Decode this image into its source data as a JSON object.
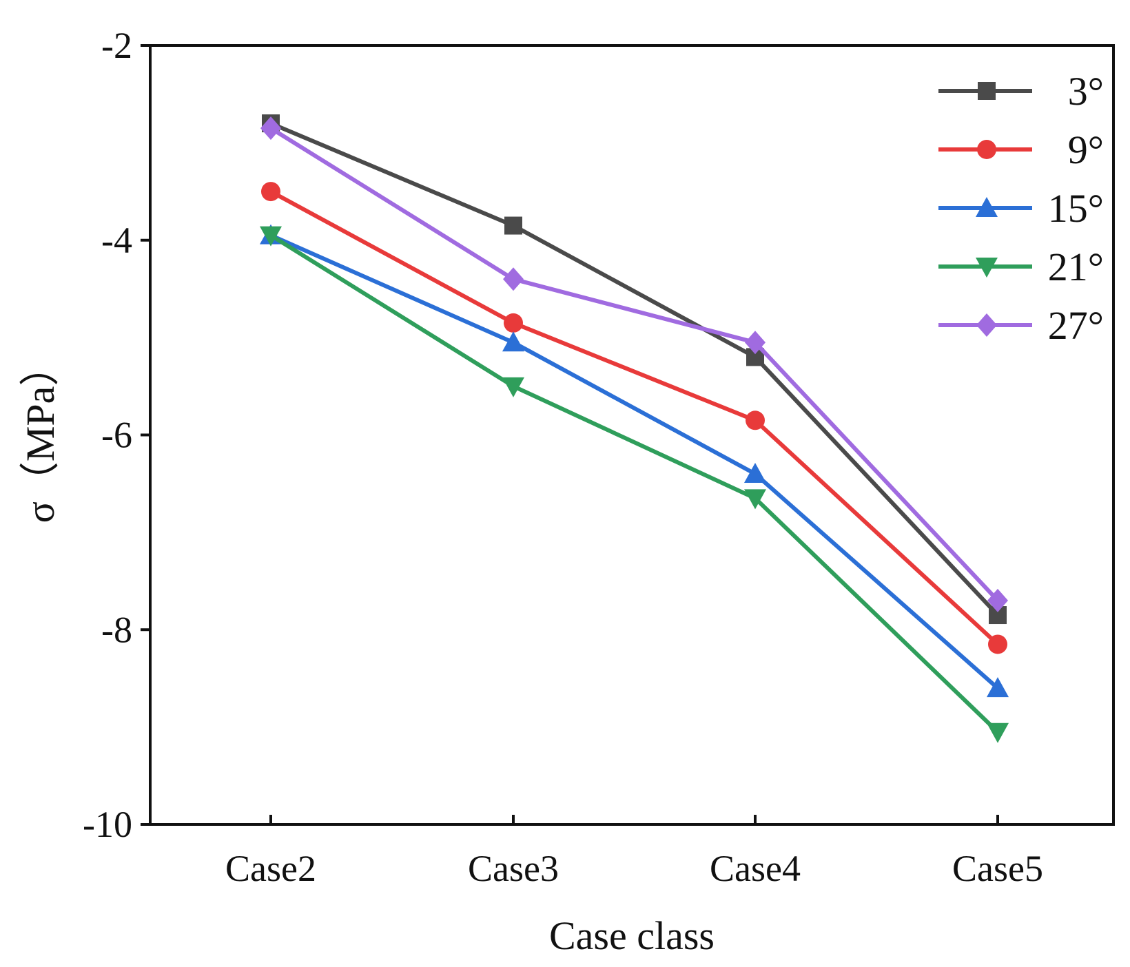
{
  "chart_data": {
    "type": "line",
    "title": "",
    "xlabel": "Case class",
    "ylabel": "σ（MPa）",
    "categories": [
      "Case2",
      "Case3",
      "Case4",
      "Case5"
    ],
    "ylim": [
      -10,
      -2
    ],
    "yticks": [
      -10,
      -8,
      -6,
      -4,
      -2
    ],
    "ytick_labels": [
      "-10",
      "-8",
      "-6",
      "-4",
      "-2"
    ],
    "grid": false,
    "legend_position": "top-right",
    "series": [
      {
        "name": "3°",
        "color": "#4a4a4a",
        "marker": "square",
        "values": [
          -2.8,
          -3.85,
          -5.2,
          -7.85
        ]
      },
      {
        "name": "9°",
        "color": "#e83a3a",
        "marker": "circle",
        "values": [
          -3.5,
          -4.85,
          -5.85,
          -8.15
        ]
      },
      {
        "name": "15°",
        "color": "#2b6fd6",
        "marker": "triangle-up",
        "values": [
          -3.95,
          -5.05,
          -6.4,
          -8.6
        ]
      },
      {
        "name": "21°",
        "color": "#2f9e5b",
        "marker": "triangle-down",
        "values": [
          -3.95,
          -5.5,
          -6.65,
          -9.05
        ]
      },
      {
        "name": "27°",
        "color": "#a06be0",
        "marker": "diamond",
        "values": [
          -2.85,
          -4.4,
          -5.05,
          -7.7
        ]
      }
    ]
  }
}
